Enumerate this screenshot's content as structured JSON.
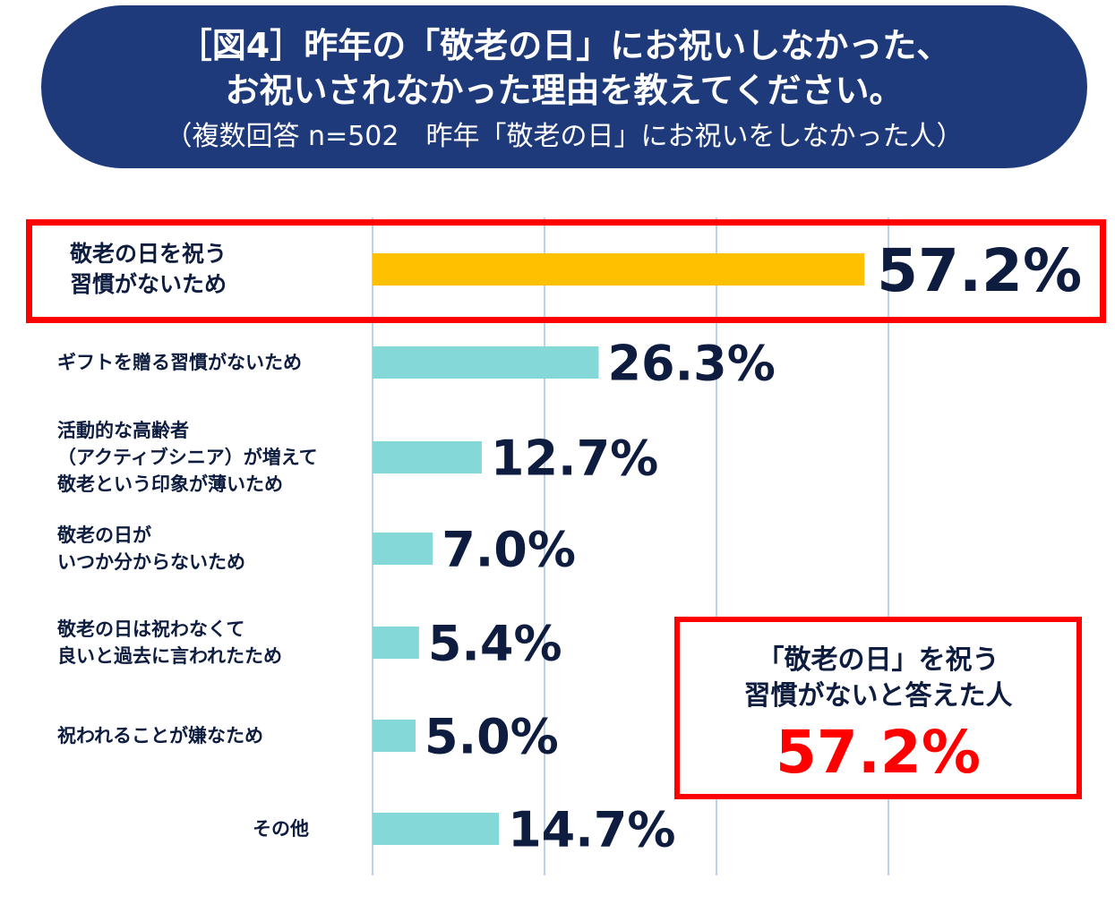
{
  "title": {
    "line1": "［図4］昨年の「敬老の日」にお祝いしなかった、",
    "line2": "お祝いされなかった理由を教えてください。",
    "subtitle": "（複数回答 n=502　昨年「敬老の日」にお祝いをしなかった人）"
  },
  "callout": {
    "line1": "「敬老の日」を祝う",
    "line2": "習慣がないと答えた人",
    "value": "57.2%"
  },
  "colors": {
    "banner": "#1f3a7a",
    "highlight_bar": "#ffc000",
    "bar": "#84d8d7",
    "gridline": "#bcd0ea",
    "highlight_frame": "#ff0000",
    "text": "#0e1d3f"
  },
  "chart_data": {
    "type": "bar",
    "orientation": "horizontal",
    "categories": [
      "敬老の日を祝う\n習慣がないため",
      "ギフトを贈る習慣がないため",
      "活動的な高齢者\n（アクティブシニア）が増えて\n敬老という印象が薄いため",
      "敬老の日が\nいつか分からないため",
      "敬老の日は祝わなくて\n良いと過去に言われたため",
      "祝われることが嫌なため",
      "その他"
    ],
    "values": [
      57.2,
      26.3,
      12.7,
      7.0,
      5.4,
      5.0,
      14.7
    ],
    "value_labels": [
      "57.2%",
      "26.3%",
      "12.7%",
      "7.0%",
      "5.4%",
      "5.0%",
      "14.7%"
    ],
    "highlight_index": 0,
    "xlim": [
      0,
      60
    ],
    "grid": true,
    "unit": "%"
  }
}
